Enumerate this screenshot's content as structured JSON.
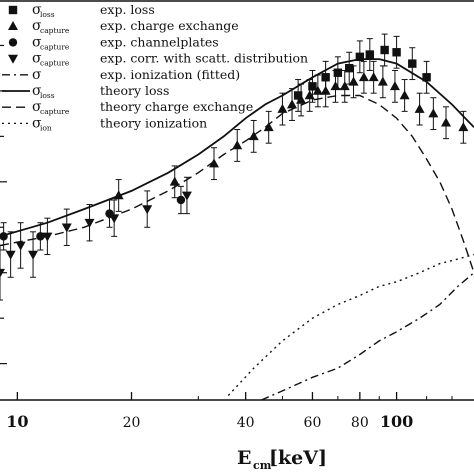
{
  "chart_data": {
    "type": "scatter",
    "title": "",
    "xlabel": {
      "main": "E",
      "sub": "cm",
      "unit": "[keV]"
    },
    "ylabel": "",
    "x_scale": "log",
    "xlim": [
      9,
      160
    ],
    "ylim": [
      0.32,
      1.2
    ],
    "x_ticks": [
      {
        "value": 10,
        "label": "10",
        "bold": true
      },
      {
        "value": 20,
        "label": "20",
        "bold": false
      },
      {
        "value": 40,
        "label": "40",
        "bold": false
      },
      {
        "value": 60,
        "label": "60",
        "bold": false
      },
      {
        "value": 80,
        "label": "80",
        "bold": false
      },
      {
        "value": 100,
        "label": "100",
        "bold": true
      }
    ],
    "legend": [
      {
        "symbol": "square",
        "sigma_sub": "loss",
        "text": "exp. loss"
      },
      {
        "symbol": "triangle-up",
        "sigma_sub": "capture",
        "text": "exp. charge exchange"
      },
      {
        "symbol": "circle",
        "sigma_sub": "capture",
        "text": "exp. channelplates"
      },
      {
        "symbol": "triangle-down",
        "sigma_sub": "capture",
        "text": "exp. corr. with scatt. distribution"
      },
      {
        "symbol": "dashdot-line",
        "sigma_sub": "",
        "text": "exp. ionization (fitted)"
      },
      {
        "symbol": "solid-line",
        "sigma_sub": "loss",
        "text": "theory loss"
      },
      {
        "symbol": "dashed-line",
        "sigma_sub": "capture",
        "text": "theory charge exchange"
      },
      {
        "symbol": "dotted-line",
        "sigma_sub": "ion",
        "text": "theory ionization"
      }
    ],
    "series": [
      {
        "marker": "square",
        "legend_ref": "exp. loss",
        "x": [
          55,
          60,
          65,
          70,
          75,
          80,
          85,
          93,
          100,
          110,
          120
        ],
        "y": [
          0.99,
          1.01,
          1.03,
          1.04,
          1.05,
          1.075,
          1.08,
          1.09,
          1.085,
          1.06,
          1.03
        ],
        "err": [
          0.035,
          0.035,
          0.035,
          0.035,
          0.035,
          0.035,
          0.035,
          0.035,
          0.035,
          0.035,
          0.035
        ]
      },
      {
        "marker": "triangle-up",
        "legend_ref": "exp. charge exchange",
        "x": [
          18.5,
          26,
          33,
          38,
          42,
          46,
          50,
          53,
          56,
          59,
          62,
          65,
          69,
          73,
          77,
          82,
          87,
          92,
          99,
          105,
          115,
          125,
          135,
          150
        ],
        "y": [
          0.77,
          0.8,
          0.84,
          0.88,
          0.9,
          0.92,
          0.96,
          0.97,
          0.98,
          0.99,
          1.0,
          1.0,
          1.01,
          1.01,
          1.02,
          1.03,
          1.03,
          1.02,
          1.01,
          0.99,
          0.96,
          0.95,
          0.93,
          0.92
        ],
        "err": [
          0.035,
          0.035,
          0.035,
          0.035,
          0.035,
          0.035,
          0.035,
          0.035,
          0.035,
          0.035,
          0.035,
          0.035,
          0.035,
          0.035,
          0.035,
          0.035,
          0.035,
          0.035,
          0.035,
          0.035,
          0.035,
          0.035,
          0.035,
          0.035
        ]
      },
      {
        "marker": "circle",
        "legend_ref": "exp. channelplates",
        "x": [
          9.2,
          11.5,
          17.5,
          27
        ],
        "y": [
          0.68,
          0.68,
          0.73,
          0.76
        ],
        "err": [
          0.03,
          0.03,
          0.03,
          0.03
        ]
      },
      {
        "marker": "triangle-down",
        "legend_ref": "exp. corr. with scatt. distribution",
        "x": [
          9.0,
          9.6,
          10.2,
          11.0,
          12.0,
          13.5,
          15.5,
          18.0,
          22.0,
          28.0
        ],
        "y": [
          0.6,
          0.64,
          0.66,
          0.64,
          0.68,
          0.7,
          0.71,
          0.72,
          0.74,
          0.77
        ],
        "err": [
          0.06,
          0.05,
          0.05,
          0.05,
          0.04,
          0.04,
          0.04,
          0.04,
          0.04,
          0.04
        ]
      }
    ],
    "curves": [
      {
        "style": "solid",
        "legend_ref": "theory loss",
        "x": [
          9,
          12,
          15,
          20,
          25,
          30,
          35,
          40,
          45,
          50,
          60,
          70,
          80,
          90,
          100,
          120,
          140,
          160
        ],
        "y": [
          0.68,
          0.71,
          0.74,
          0.78,
          0.82,
          0.86,
          0.9,
          0.94,
          0.97,
          0.99,
          1.03,
          1.06,
          1.07,
          1.07,
          1.06,
          1.02,
          0.97,
          0.92
        ]
      },
      {
        "style": "dashed",
        "legend_ref": "theory charge exchange",
        "x": [
          9,
          12,
          15,
          20,
          25,
          30,
          35,
          40,
          45,
          50,
          60,
          70,
          80,
          90,
          100,
          110,
          120,
          130,
          140,
          150,
          160
        ],
        "y": [
          0.66,
          0.68,
          0.7,
          0.74,
          0.78,
          0.82,
          0.86,
          0.89,
          0.92,
          0.95,
          0.98,
          0.99,
          0.99,
          0.97,
          0.94,
          0.9,
          0.85,
          0.8,
          0.74,
          0.67,
          0.6
        ]
      },
      {
        "style": "dotted",
        "legend_ref": "theory ionization",
        "x": [
          36,
          42,
          50,
          60,
          70,
          80,
          90,
          100,
          115,
          130,
          145,
          160
        ],
        "y": [
          0.33,
          0.39,
          0.45,
          0.5,
          0.53,
          0.55,
          0.57,
          0.58,
          0.6,
          0.62,
          0.63,
          0.64
        ]
      },
      {
        "style": "dashdot",
        "legend_ref": "exp. ionization (fitted)",
        "x": [
          44,
          50,
          60,
          70,
          80,
          90,
          100,
          115,
          130,
          145,
          160
        ],
        "y": [
          0.32,
          0.34,
          0.37,
          0.39,
          0.42,
          0.45,
          0.47,
          0.5,
          0.53,
          0.57,
          0.6
        ]
      }
    ],
    "grid": false,
    "legend_position": "top-left"
  }
}
